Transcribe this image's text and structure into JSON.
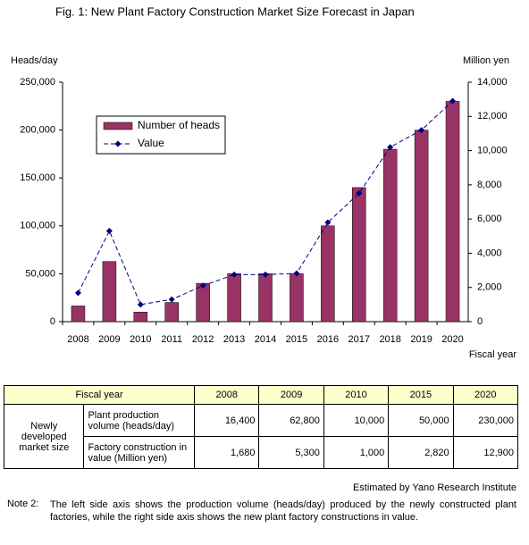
{
  "chart_data": {
    "type": "bar",
    "title": "Fig. 1: New Plant Factory Construction Market Size Forecast in Japan",
    "y_label": "Heads/day",
    "y2_label": "Million yen",
    "x_label": "Fiscal year",
    "categories": [
      "2008",
      "2009",
      "2010",
      "2011",
      "2012",
      "2013",
      "2014",
      "2015",
      "2016",
      "2017",
      "2018",
      "2019",
      "2020"
    ],
    "series": [
      {
        "name": "Number of heads",
        "type": "bar",
        "color": "#993366",
        "values": [
          16400,
          62800,
          10000,
          20000,
          40000,
          50000,
          50000,
          50000,
          100000,
          140000,
          180000,
          200000,
          230000
        ]
      },
      {
        "name": "Value",
        "type": "line",
        "axis": "y2",
        "color": "#000080",
        "values": [
          1680,
          5300,
          1000,
          1300,
          2100,
          2750,
          2750,
          2820,
          5800,
          7500,
          10200,
          11200,
          12900
        ]
      }
    ],
    "ylim": [
      0,
      250000
    ],
    "yticks": [
      0,
      {
        "value": 50000,
        "label": "50,000"
      },
      {
        "value": 100000,
        "label": "100,000"
      },
      {
        "value": 150000,
        "label": "150,000"
      },
      {
        "value": 200000,
        "label": "200,000"
      },
      {
        "value": 250000,
        "label": "250,000"
      }
    ],
    "y2lim": [
      0,
      14000
    ],
    "y2ticks": [
      0,
      {
        "value": 2000,
        "label": "2,000"
      },
      {
        "value": 4000,
        "label": "4,000"
      },
      {
        "value": 6000,
        "label": "6,000"
      },
      {
        "value": 8000,
        "label": "8,000"
      },
      {
        "value": 10000,
        "label": "10,000"
      },
      {
        "value": 12000,
        "label": "12,000"
      },
      {
        "value": 14000,
        "label": "14,000"
      }
    ],
    "grid": false,
    "legend": "upper left"
  },
  "table": {
    "header": [
      "Fiscal year",
      "2008",
      "2009",
      "2010",
      "2015",
      "2020"
    ],
    "group": "Newly developed market size",
    "rows": [
      {
        "label": "Plant production volume (heads/day)",
        "values": [
          "16,400",
          "62,800",
          "10,000",
          "50,000",
          "230,000"
        ]
      },
      {
        "label": "Factory construction in value (Million yen)",
        "values": [
          "1,680",
          "5,300",
          "1,000",
          "2,820",
          "12,900"
        ]
      }
    ]
  },
  "source": "Estimated by Yano Research Institute",
  "note": {
    "label": "Note 2:",
    "text": "The left side axis shows the production volume (heads/day) produced by the newly constructed plant factories, while the right side axis shows the new plant factory constructions in value."
  }
}
